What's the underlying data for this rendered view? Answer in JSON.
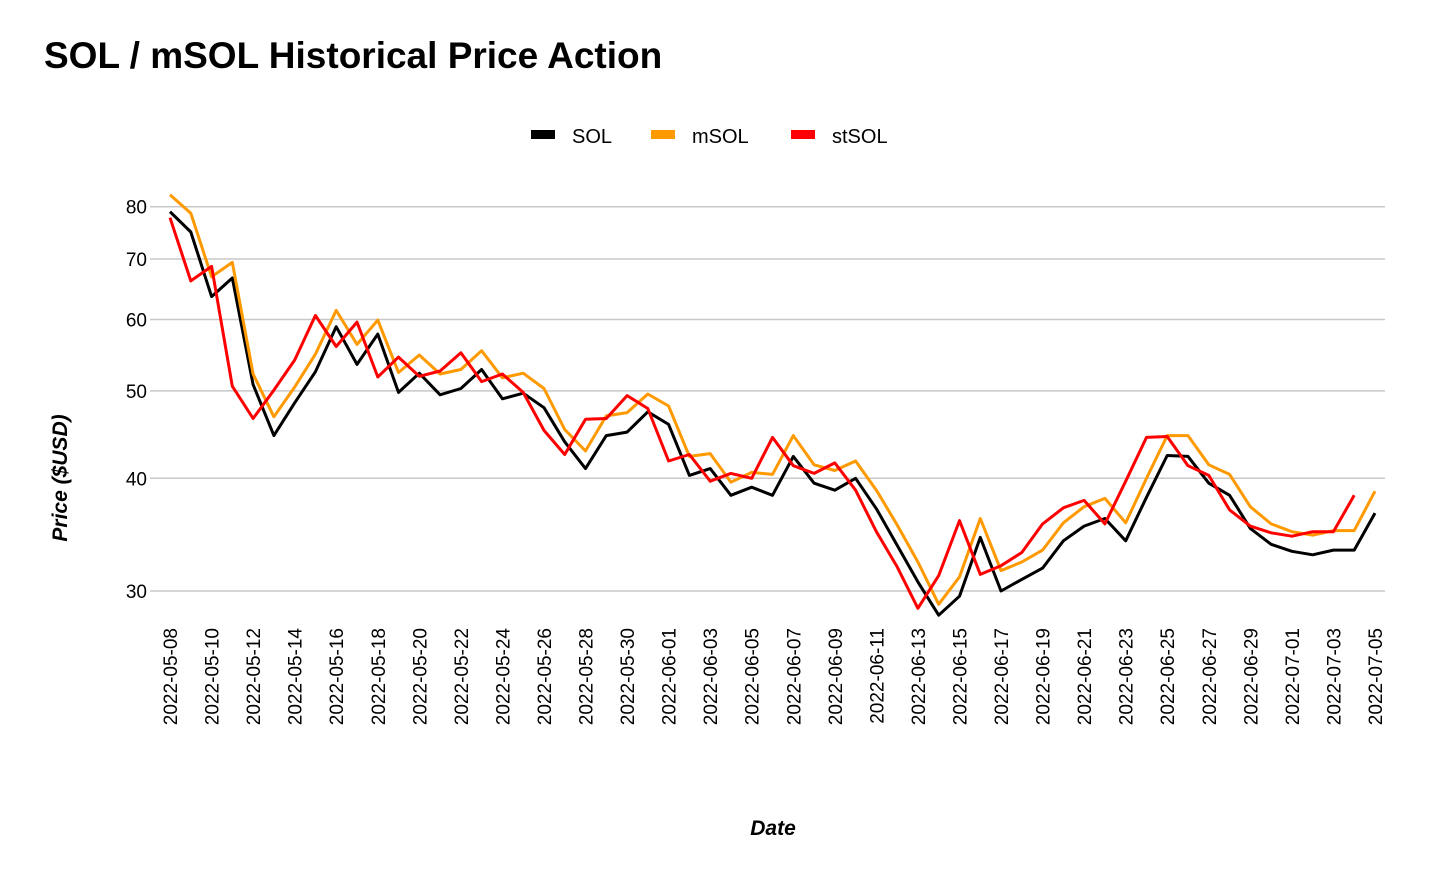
{
  "chart_data": {
    "type": "line",
    "title": "SOL / mSOL Historical Price Action",
    "x_label": "Date",
    "y_label": "Price ($USD)",
    "log_y": true,
    "grid": true,
    "legend": "top",
    "categories": [
      "2022-05-08",
      null,
      "2022-05-10",
      null,
      "2022-05-12",
      null,
      "2022-05-14",
      null,
      "2022-05-16",
      null,
      "2022-05-18",
      null,
      "2022-05-20",
      null,
      "2022-05-22",
      null,
      "2022-05-24",
      null,
      "2022-05-26",
      null,
      "2022-05-28",
      null,
      "2022-05-30",
      null,
      "2022-06-01",
      null,
      "2022-06-03",
      null,
      "2022-06-05",
      null,
      "2022-06-07",
      null,
      "2022-06-09",
      null,
      "2022-06-11",
      null,
      "2022-06-13",
      null,
      "2022-06-15",
      null,
      "2022-06-17",
      null,
      "2022-06-19",
      null,
      "2022-06-21",
      null,
      "2022-06-23",
      null,
      "2022-06-25",
      null,
      "2022-06-27",
      null,
      "2022-06-29",
      null,
      "2022-07-01",
      null,
      "2022-07-03",
      null,
      "2022-07-05"
    ],
    "ylim": [
      28,
      85
    ],
    "yticks": [
      30,
      40,
      50,
      60,
      70,
      80
    ],
    "series": [
      {
        "name": "SOL",
        "color": "#000000",
        "values": [
          79.0,
          75,
          63.6,
          66.7,
          50.8,
          44.6,
          48.5,
          52.5,
          58.9,
          53.5,
          57.8,
          49.8,
          52.3,
          49.5,
          50.3,
          52.8,
          49.0,
          49.7,
          47.9,
          43.9,
          41.0,
          44.6,
          45.0,
          47.4,
          45.9,
          40.3,
          41.0,
          38.3,
          39.1,
          38.3,
          42.3,
          39.5,
          38.8,
          40.0,
          37.0,
          33.7,
          30.7,
          28.2,
          29.6,
          34.4,
          30.0,
          30.9,
          31.8,
          34.1,
          35.4,
          36.1,
          34.1,
          38.1,
          42.4,
          42.3,
          39.5,
          38.3,
          35.2,
          33.8,
          33.2,
          32.9,
          33.3,
          33.3,
          36.6
        ]
      },
      {
        "name": "mSOL",
        "color": "#ff9900",
        "values": [
          82.5,
          78.7,
          66.9,
          69.4,
          52.2,
          46.8,
          50.5,
          54.9,
          61.4,
          56.3,
          59.9,
          52.4,
          54.8,
          52.2,
          52.8,
          55.4,
          51.7,
          52.3,
          50.3,
          45.3,
          42.9,
          46.9,
          47.3,
          49.6,
          48.1,
          42.3,
          42.6,
          39.6,
          40.6,
          40.4,
          44.6,
          41.4,
          40.8,
          41.8,
          38.8,
          35.5,
          32.3,
          29.0,
          31.1,
          36.1,
          31.6,
          32.3,
          33.3,
          35.7,
          37.2,
          38.0,
          35.7,
          40.0,
          44.6,
          44.6,
          41.4,
          40.4,
          37.2,
          35.6,
          34.9,
          34.6,
          35.0,
          35.0,
          38.7
        ]
      },
      {
        "name": "stSOL",
        "color": "#ff0000",
        "values": [
          77.8,
          66.2,
          68.7,
          50.6,
          46.6,
          50.1,
          54.1,
          60.6,
          56.0,
          59.6,
          51.8,
          54.5,
          51.9,
          52.6,
          55.1,
          51.2,
          52.2,
          49.8,
          45.2,
          42.5,
          46.5,
          46.6,
          49.4,
          47.8,
          41.8,
          42.5,
          39.7,
          40.5,
          40.0,
          44.4,
          41.3,
          40.5,
          41.6,
          38.8,
          34.9,
          31.9,
          28.7,
          31.2,
          35.9,
          31.3,
          32.0,
          33.1,
          35.6,
          37.1,
          37.8,
          35.6,
          39.7,
          44.4,
          44.5,
          41.3,
          40.3,
          36.9,
          35.4,
          34.8,
          34.5,
          34.9,
          34.9,
          38.3,
          null
        ]
      }
    ]
  }
}
